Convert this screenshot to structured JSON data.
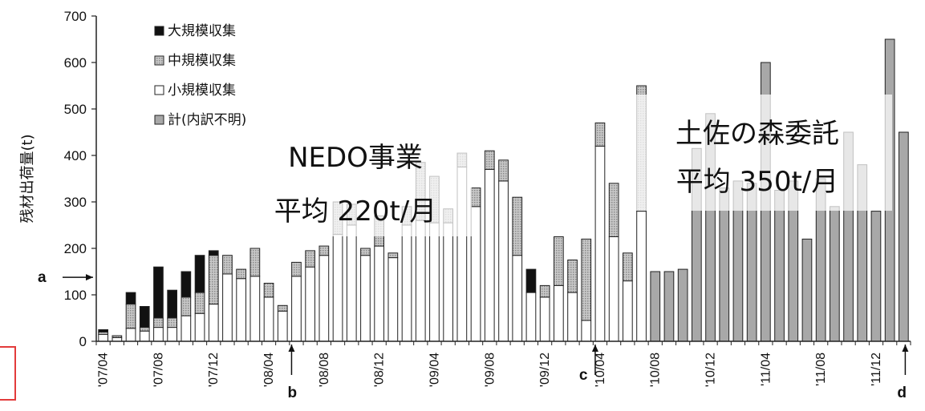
{
  "chart_data": {
    "type": "bar",
    "stacked": true,
    "ylabel": "残材出荷量(t)",
    "ylim": [
      0,
      700
    ],
    "yticks": [
      0,
      100,
      200,
      300,
      400,
      500,
      600,
      700
    ],
    "categories": [
      "'07/04",
      "'07/05",
      "'07/06",
      "'07/07",
      "'07/08",
      "'07/09",
      "'07/10",
      "'07/11",
      "'07/12",
      "'08/01",
      "'08/02",
      "'08/03",
      "'08/04",
      "'08/05",
      "'08/06",
      "'08/07",
      "'08/08",
      "'08/09",
      "'08/10",
      "'08/11",
      "'08/12",
      "'09/01",
      "'09/02",
      "'09/03",
      "'09/04",
      "'09/05",
      "'09/06",
      "'09/07",
      "'09/08",
      "'09/09",
      "'09/10",
      "'09/11",
      "'09/12",
      "'10/01",
      "'10/02",
      "'10/03",
      "'10/04",
      "'10/05",
      "'10/06",
      "'10/07",
      "'10/08",
      "'10/09",
      "'10/10",
      "'10/11",
      "'10/12",
      "'11/01",
      "'11/02",
      "'11/03",
      "'11/04",
      "'11/05",
      "'11/06",
      "'11/07",
      "'11/08",
      "'11/09",
      "'11/10",
      "'11/11",
      "'11/12",
      "'12/01",
      "'12/02"
    ],
    "xtick_labels": [
      "'07/04",
      "'07/08",
      "'07/12",
      "'08/04",
      "'08/08",
      "'08/12",
      "'09/04",
      "'09/08",
      "'09/12",
      "'10/04",
      "'10/08",
      "'10/12",
      "'11/04",
      "'11/08",
      "'11/12"
    ],
    "xtick_indices": [
      0,
      4,
      8,
      12,
      16,
      20,
      24,
      28,
      32,
      36,
      40,
      44,
      48,
      52,
      56
    ],
    "series": [
      {
        "name": "小規模収集",
        "values": [
          15,
          8,
          28,
          22,
          30,
          30,
          55,
          60,
          80,
          145,
          135,
          140,
          95,
          65,
          140,
          160,
          185,
          230,
          250,
          185,
          205,
          180,
          250,
          260,
          255,
          255,
          375,
          290,
          370,
          345,
          185,
          105,
          95,
          120,
          105,
          45,
          420,
          225,
          130,
          280,
          0,
          0,
          0,
          0,
          0,
          0,
          0,
          0,
          0,
          0,
          0,
          0,
          0,
          0,
          0,
          0,
          0,
          0,
          0
        ]
      },
      {
        "name": "中規模収集",
        "values": [
          5,
          4,
          52,
          8,
          20,
          20,
          40,
          45,
          105,
          40,
          20,
          60,
          30,
          12,
          30,
          35,
          20,
          70,
          45,
          15,
          65,
          10,
          40,
          125,
          100,
          30,
          30,
          40,
          40,
          45,
          125,
          0,
          25,
          105,
          70,
          175,
          50,
          115,
          60,
          270,
          0,
          0,
          0,
          0,
          0,
          0,
          0,
          0,
          0,
          0,
          0,
          0,
          0,
          0,
          0,
          0,
          0,
          0,
          0
        ]
      },
      {
        "name": "大規模収集",
        "values": [
          5,
          0,
          25,
          45,
          110,
          60,
          55,
          80,
          10,
          0,
          0,
          0,
          0,
          0,
          0,
          0,
          0,
          0,
          0,
          0,
          0,
          0,
          0,
          0,
          0,
          0,
          0,
          0,
          0,
          0,
          0,
          50,
          0,
          0,
          0,
          0,
          0,
          0,
          0,
          0,
          0,
          0,
          0,
          0,
          0,
          0,
          0,
          0,
          0,
          0,
          0,
          0,
          0,
          0,
          0,
          0,
          0,
          0,
          0
        ]
      },
      {
        "name": "計(内訳不明)",
        "values": [
          0,
          0,
          0,
          0,
          0,
          0,
          0,
          0,
          0,
          0,
          0,
          0,
          0,
          0,
          0,
          0,
          0,
          0,
          0,
          0,
          0,
          0,
          0,
          0,
          0,
          0,
          0,
          0,
          0,
          0,
          0,
          0,
          0,
          0,
          0,
          0,
          0,
          0,
          0,
          0,
          150,
          150,
          155,
          415,
          490,
          330,
          345,
          340,
          600,
          325,
          345,
          220,
          350,
          290,
          450,
          380,
          280,
          650,
          450
        ]
      }
    ],
    "colors": {
      "大規模収集": "#111111",
      "中規模収集": "#b8b8b8",
      "小規模収集": "#ffffff",
      "計(内訳不明)": "#a8a8a8"
    },
    "legend_position": "top-left",
    "grid": false,
    "arrows": [
      {
        "label": "a",
        "axis": "y",
        "value": 155
      },
      {
        "label": "b",
        "axis": "x",
        "index": 14
      },
      {
        "label": "c",
        "axis": "x",
        "index": 36
      },
      {
        "label": "d",
        "axis": "x",
        "index": 58
      }
    ],
    "annotations": [
      {
        "lines": [
          "NEDO事業",
          "平均 220t/月"
        ]
      },
      {
        "lines": [
          "土佐の森委託",
          "平均 350t/月"
        ]
      }
    ]
  }
}
